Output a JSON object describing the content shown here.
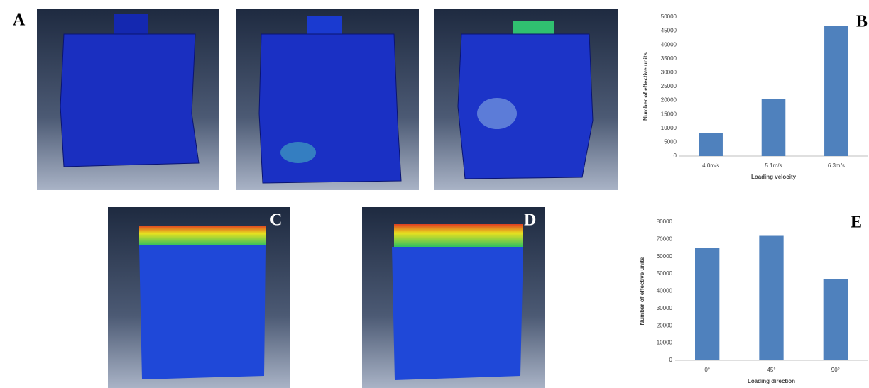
{
  "panel_labels": [
    "A",
    "B",
    "C",
    "D",
    "E"
  ],
  "chart_data": [
    {
      "type": "bar",
      "categories": [
        "4.0m/s",
        "5.1m/s",
        "6.3m/s"
      ],
      "values": [
        8200,
        20500,
        46800
      ],
      "color": "#4f81bd",
      "ylim": [
        0,
        50000
      ],
      "yticks": [
        0,
        5000,
        10000,
        15000,
        20000,
        25000,
        30000,
        35000,
        40000,
        45000,
        50000
      ],
      "ylabel": "Number of effective units",
      "xlabel": "Loading velocity"
    },
    {
      "type": "bar",
      "categories": [
        "0°",
        "45°",
        "90°"
      ],
      "values": [
        65000,
        72000,
        47000
      ],
      "color": "#4f81bd",
      "ylim": [
        0,
        80000
      ],
      "yticks": [
        0,
        10000,
        20000,
        30000,
        40000,
        50000,
        60000,
        70000,
        80000
      ],
      "ylabel": "Number of effective units",
      "xlabel": "Loading direction"
    }
  ]
}
